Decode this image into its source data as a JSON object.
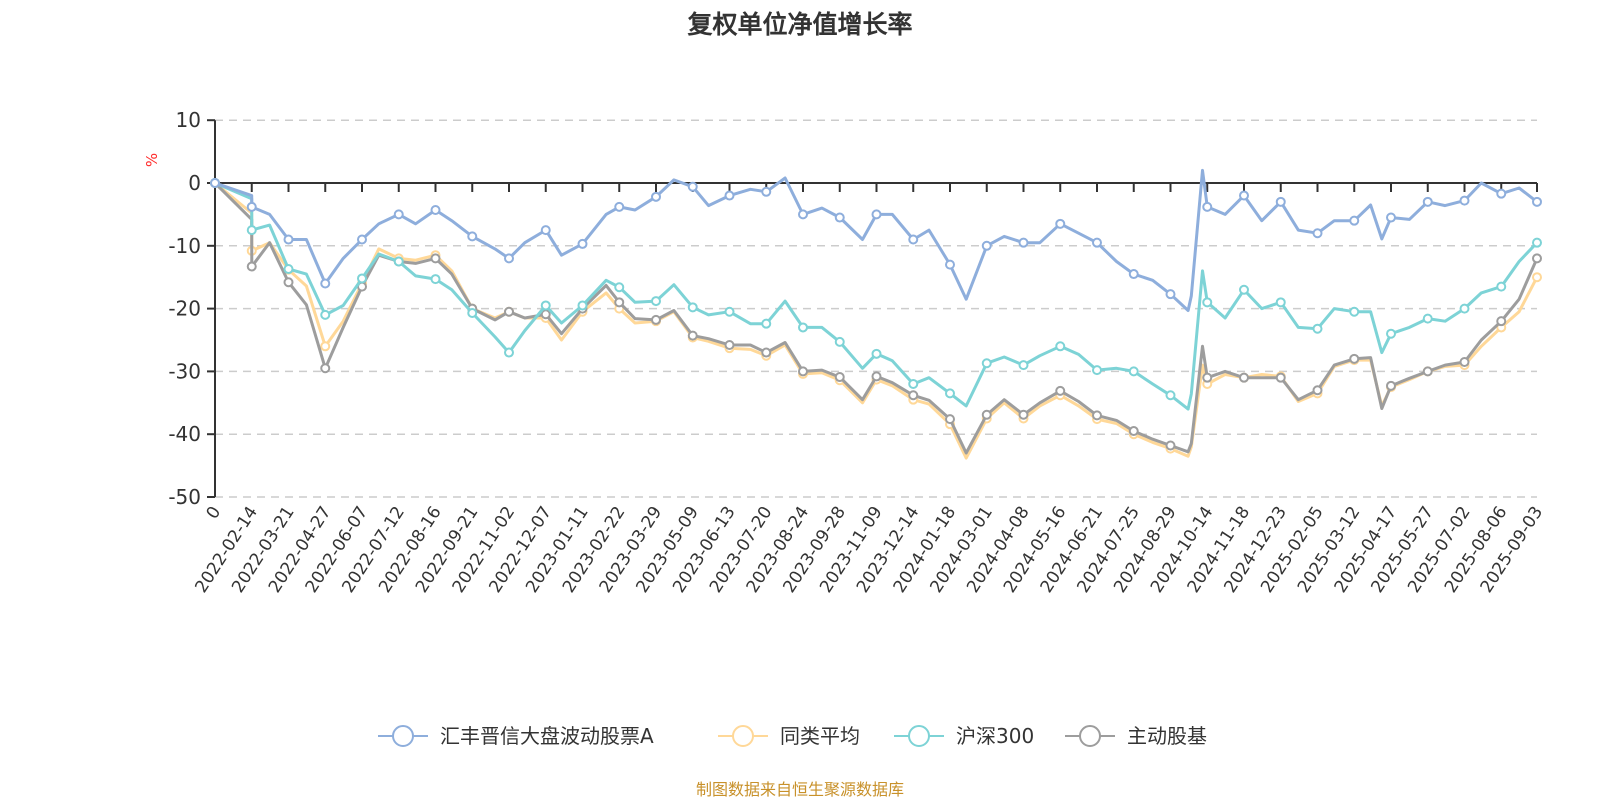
{
  "chart_data": {
    "type": "line",
    "title": "复权单位净值增长率",
    "ylabel": "%",
    "ylim": [
      -50,
      10
    ],
    "yticks": [
      10,
      0,
      -10,
      -20,
      -30,
      -40,
      -50
    ],
    "grid": true,
    "legend_position": "bottom",
    "x_tick_labels": [
      "0",
      "2022-02-14",
      "2022-03-21",
      "2022-04-27",
      "2022-06-07",
      "2022-07-12",
      "2022-08-16",
      "2022-09-21",
      "2022-11-02",
      "2022-12-07",
      "2023-01-11",
      "2023-02-22",
      "2023-03-29",
      "2023-05-09",
      "2023-06-13",
      "2023-07-20",
      "2023-08-24",
      "2023-09-28",
      "2023-11-09",
      "2023-12-14",
      "2024-01-18",
      "2024-03-01",
      "2024-04-08",
      "2024-05-16",
      "2024-06-21",
      "2024-07-25",
      "2024-08-29",
      "2024-10-14",
      "2024-11-18",
      "2024-12-23",
      "2025-02-05",
      "2025-03-12",
      "2025-04-17",
      "2025-05-27",
      "2025-07-02",
      "2025-08-06",
      "2025-09-03"
    ],
    "x": [
      "0",
      "2022-01-27",
      "2022-02-14",
      "2022-03-03",
      "2022-03-21",
      "2022-04-08",
      "2022-04-27",
      "2022-05-17",
      "2022-06-07",
      "2022-06-23",
      "2022-07-12",
      "2022-07-28",
      "2022-08-16",
      "2022-09-01",
      "2022-09-21",
      "2022-10-17",
      "2022-11-02",
      "2022-11-17",
      "2022-12-07",
      "2022-12-22",
      "2023-01-11",
      "2023-02-07",
      "2023-02-22",
      "2023-03-09",
      "2023-03-29",
      "2023-04-18",
      "2023-05-09",
      "2023-05-24",
      "2023-06-13",
      "2023-07-04",
      "2023-07-20",
      "2023-08-07",
      "2023-08-24",
      "2023-09-11",
      "2023-09-28",
      "2023-10-24",
      "2023-11-09",
      "2023-11-24",
      "2023-12-14",
      "2023-12-29",
      "2024-01-18",
      "2024-02-06",
      "2024-03-01",
      "2024-03-19",
      "2024-04-08",
      "2024-04-25",
      "2024-05-16",
      "2024-06-03",
      "2024-06-21",
      "2024-07-09",
      "2024-07-25",
      "2024-08-12",
      "2024-08-29",
      "2024-09-20",
      "2024-09-24",
      "2024-10-08",
      "2024-10-14",
      "2024-10-31",
      "2024-11-18",
      "2024-12-05",
      "2024-12-23",
      "2025-01-13",
      "2025-02-05",
      "2025-02-21",
      "2025-03-12",
      "2025-03-28",
      "2025-04-08",
      "2025-04-17",
      "2025-05-07",
      "2025-05-27",
      "2025-06-13",
      "2025-07-02",
      "2025-07-18",
      "2025-08-06",
      "2025-08-20",
      "2025-09-03"
    ],
    "series": [
      {
        "name": "汇丰晋信大盘波动股票A",
        "color": "#8eaedc",
        "values": [
          0,
          -2,
          -3.8,
          -5,
          -9,
          -9,
          -16,
          -12,
          -9,
          -6.5,
          -5,
          -6.5,
          -4.3,
          -6,
          -8.5,
          -10.5,
          -12,
          -9.5,
          -7.5,
          -11.5,
          -9.7,
          -5,
          -3.8,
          -4.3,
          -2.2,
          0.5,
          -0.6,
          -3.6,
          -2,
          -1,
          -1.4,
          0.8,
          -5,
          -4,
          -5.5,
          -9,
          -5,
          -5,
          -9,
          -7.5,
          -13,
          -18.5,
          -10,
          -8.5,
          -9.5,
          -9.5,
          -6.5,
          -8,
          -9.5,
          -12.5,
          -14.5,
          -15.5,
          -17.7,
          -20.3,
          -18,
          2,
          -3.8,
          -5,
          -2,
          -6,
          -3,
          -7.5,
          -8,
          -6,
          -6,
          -3.5,
          -8.9,
          -5.5,
          -5.8,
          -3,
          -3.6,
          -2.8,
          0,
          -1.7,
          -0.8,
          -3
        ]
      },
      {
        "name": "同类平均",
        "color": "#ffd898",
        "values": [
          0,
          -4.8,
          -10.8,
          -9.5,
          -13.8,
          -16.4,
          -26,
          -22,
          -16,
          -10.5,
          -12,
          -12.3,
          -11.5,
          -14,
          -20,
          -21.5,
          -20.5,
          -21.5,
          -21.5,
          -25,
          -20.5,
          -17.5,
          -20,
          -22.3,
          -22,
          -20.5,
          -24.6,
          -25.2,
          -26.3,
          -26.5,
          -27.5,
          -25.8,
          -30.4,
          -30.2,
          -31.4,
          -35,
          -31.3,
          -32.3,
          -34.5,
          -35.2,
          -38.4,
          -43.8,
          -37.5,
          -35,
          -37.5,
          -35.5,
          -33.8,
          -35.5,
          -37.6,
          -38.3,
          -40,
          -41.3,
          -42.3,
          -43.5,
          -42,
          -29,
          -32,
          -30.5,
          -31,
          -30.5,
          -30.8,
          -34.8,
          -33.5,
          -29.2,
          -28.2,
          -28.2,
          -35.5,
          -32.5,
          -31.3,
          -30,
          -29.2,
          -29,
          -26,
          -23,
          -20.5,
          -15
        ]
      },
      {
        "name": "沪深300",
        "color": "#7dd3d6",
        "values": [
          0,
          -2.5,
          -7.5,
          -6.7,
          -13.7,
          -14.5,
          -21,
          -19.5,
          -15.2,
          -11.3,
          -12.5,
          -14.8,
          -15.3,
          -17,
          -20.7,
          -24.5,
          -27,
          -23.5,
          -19.5,
          -22.3,
          -19.5,
          -15.5,
          -16.6,
          -19,
          -18.8,
          -16.2,
          -19.8,
          -21,
          -20.5,
          -22.4,
          -22.4,
          -18.8,
          -23,
          -23,
          -25.3,
          -29.5,
          -27.2,
          -28.3,
          -32,
          -31,
          -33.5,
          -35.5,
          -28.7,
          -27.7,
          -29,
          -27.5,
          -26,
          -27.3,
          -29.8,
          -29.5,
          -30,
          -32,
          -33.8,
          -36,
          -33.6,
          -14,
          -19,
          -21.5,
          -17,
          -20,
          -19,
          -23,
          -23.2,
          -20,
          -20.5,
          -20.5,
          -27,
          -24,
          -23,
          -21.6,
          -22,
          -20,
          -17.5,
          -16.5,
          -12.5,
          -9.5
        ]
      },
      {
        "name": "主动股基",
        "color": "#9d9d9d",
        "values": [
          0,
          -5.8,
          -13.3,
          -9.5,
          -15.8,
          -19.4,
          -29.5,
          -23,
          -16.5,
          -11.5,
          -12.5,
          -12.8,
          -12,
          -14.5,
          -20,
          -21.8,
          -20.5,
          -21.5,
          -20.9,
          -24,
          -20,
          -16.3,
          -19,
          -21.6,
          -21.8,
          -20.3,
          -24.3,
          -24.8,
          -25.8,
          -25.8,
          -27,
          -25.4,
          -30,
          -29.8,
          -30.9,
          -34.5,
          -30.8,
          -31.8,
          -33.8,
          -34.6,
          -37.6,
          -43,
          -36.9,
          -34.5,
          -36.9,
          -35,
          -33.1,
          -34.8,
          -37,
          -37.8,
          -39.5,
          -40.8,
          -41.8,
          -42.8,
          -41.5,
          -26,
          -31,
          -30,
          -31,
          -31,
          -31,
          -34.5,
          -33,
          -29,
          -28,
          -27.8,
          -35.9,
          -32.3,
          -31.1,
          -30,
          -29,
          -28.5,
          -25,
          -22,
          -18.5,
          -12
        ]
      }
    ]
  },
  "footer": "制图数据来自恒生聚源数据库"
}
